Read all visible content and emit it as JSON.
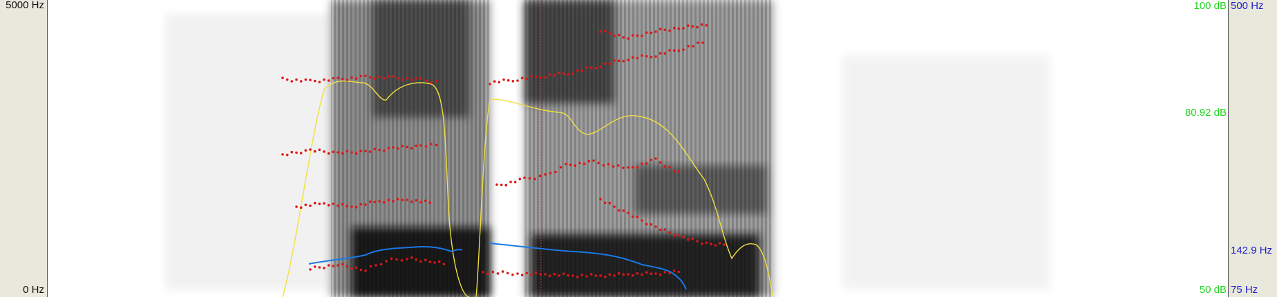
{
  "window": {
    "freq_axis": {
      "top_label": "5000 Hz",
      "bottom_label": "0 Hz"
    },
    "intensity_axis": {
      "top_label": "100 dB",
      "mid_label": "80.92 dB",
      "bottom_label": "50 dB"
    },
    "pitch_axis": {
      "top_label": "500 Hz",
      "mid_label": "142.9 Hz",
      "bottom_label": "75 Hz"
    }
  },
  "colors": {
    "formant": "#e01515",
    "intensity": "#f0e040",
    "pitch": "#1a78e6",
    "intensity_label": "#22d61e",
    "pitch_label": "#1e1ec8",
    "cursor": "#c43a3a"
  }
}
